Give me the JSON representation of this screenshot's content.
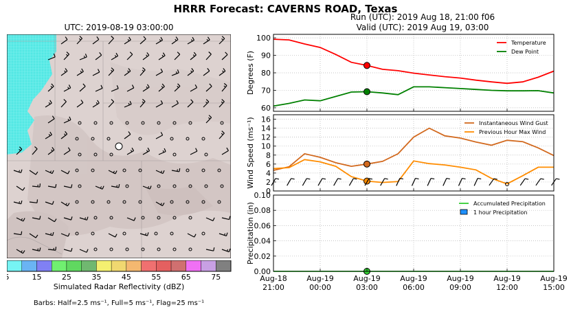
{
  "title": "HRRR Forecast: CAVERNS ROAD, Texas",
  "map": {
    "title": "UTC: 2019-08-19 03:00:00",
    "colorbar_label": "Simulated Radar Reflectivity (dBZ)",
    "colorbar_ticks": [
      "5",
      "15",
      "25",
      "35",
      "45",
      "55",
      "65",
      "75"
    ],
    "colorbar_colors": [
      "#76f4f4",
      "#6ab4f4",
      "#8080f4",
      "#70f070",
      "#60d860",
      "#70b870",
      "#f4f070",
      "#f0d870",
      "#f4b870",
      "#f07070",
      "#e46060",
      "#d07070",
      "#f070f4",
      "#c8a0e4",
      "#808080"
    ],
    "barbs_note": "Barbs: Half=2.5 ms⁻¹, Full=5 ms⁻¹, Flag=25 ms⁻¹"
  },
  "run": {
    "line1": "Run (UTC): 2019 Aug 18, 21:00 f06",
    "line2": "Valid (UTC): 2019 Aug 19, 03:00"
  },
  "colors": {
    "temperature": "#ff0000",
    "dew_point": "#008000",
    "gust": "#d2691e",
    "max_wind": "#ff8c00",
    "accum_precip": "#32cd32",
    "hourly_precip": "#1e90ff"
  },
  "chart_data": [
    {
      "type": "line",
      "ylabel": "Degrees (F)",
      "ylim": [
        58,
        102
      ],
      "yticks": [
        60,
        70,
        80,
        90,
        100
      ],
      "legend": "top-right",
      "x_hours": [
        0,
        1,
        2,
        3,
        4,
        5,
        6,
        7,
        8,
        9,
        10,
        11,
        12,
        13,
        14,
        15,
        16,
        17,
        18
      ],
      "series": [
        {
          "name": "Temperature",
          "values": [
            99.2,
            98.8,
            96.5,
            94.5,
            90.5,
            86.0,
            84.2,
            82.0,
            81.2,
            79.8,
            78.8,
            77.8,
            77.0,
            75.8,
            74.8,
            74.0,
            74.8,
            77.5,
            81.0
          ]
        },
        {
          "name": "Dew Point",
          "values": [
            61.0,
            62.5,
            64.5,
            64.0,
            66.5,
            69.0,
            69.2,
            68.5,
            67.5,
            72.0,
            72.0,
            71.5,
            71.0,
            70.5,
            70.0,
            69.7,
            69.7,
            69.8,
            68.5
          ]
        }
      ],
      "marker_hour": 6
    },
    {
      "type": "line",
      "ylabel": "Wind Speed (ms⁻¹)",
      "ylim": [
        0,
        17
      ],
      "yticks": [
        0,
        2,
        4,
        6,
        8,
        10,
        12,
        14,
        16
      ],
      "legend": "top-right",
      "x_hours": [
        0,
        1,
        2,
        3,
        4,
        5,
        6,
        7,
        8,
        9,
        10,
        11,
        12,
        13,
        14,
        15,
        16,
        17,
        18
      ],
      "series": [
        {
          "name": "Instantaneous Wind Gust",
          "values": [
            4.6,
            5.4,
            8.3,
            7.5,
            6.3,
            5.5,
            6.0,
            6.6,
            8.3,
            12.0,
            14.0,
            12.3,
            11.8,
            10.9,
            10.2,
            11.3,
            11.0,
            9.6,
            7.9
          ]
        },
        {
          "name": "Previous Hour Max Wind",
          "values": [
            5.0,
            5.2,
            7.0,
            6.5,
            5.5,
            3.2,
            2.2,
            1.9,
            2.1,
            6.7,
            6.1,
            5.8,
            5.3,
            4.7,
            2.8,
            1.6,
            3.4,
            5.3,
            5.3
          ]
        }
      ],
      "marker_hour": 6,
      "barbs": [
        {
          "hour": 0,
          "type": "barb"
        },
        {
          "hour": 1,
          "type": "barb"
        },
        {
          "hour": 2,
          "type": "barb"
        },
        {
          "hour": 3,
          "type": "barb"
        },
        {
          "hour": 4,
          "type": "barb"
        },
        {
          "hour": 5,
          "type": "barb"
        },
        {
          "hour": 6,
          "type": "barb"
        },
        {
          "hour": 7,
          "type": "barb"
        },
        {
          "hour": 8,
          "type": "barb"
        },
        {
          "hour": 9,
          "type": "barb"
        },
        {
          "hour": 10,
          "type": "barb"
        },
        {
          "hour": 11,
          "type": "barb"
        },
        {
          "hour": 12,
          "type": "barb"
        },
        {
          "hour": 13,
          "type": "barb"
        },
        {
          "hour": 14,
          "type": "barb"
        },
        {
          "hour": 15,
          "type": "calm"
        },
        {
          "hour": 16,
          "type": "barb"
        },
        {
          "hour": 17,
          "type": "barb"
        },
        {
          "hour": 18,
          "type": "barb"
        }
      ]
    },
    {
      "type": "bar",
      "ylabel": "Precipitation (in)",
      "ylim": [
        0,
        0.1
      ],
      "yticks": [
        "0.00",
        "0.02",
        "0.04",
        "0.06",
        "0.08",
        "0.10"
      ],
      "legend": "top-right",
      "x_hours": [
        0,
        1,
        2,
        3,
        4,
        5,
        6,
        7,
        8,
        9,
        10,
        11,
        12,
        13,
        14,
        15,
        16,
        17,
        18
      ],
      "series": [
        {
          "name": "Accumulated Precipitation",
          "values": [
            0,
            0,
            0,
            0,
            0,
            0,
            0,
            0,
            0,
            0,
            0,
            0,
            0,
            0,
            0,
            0,
            0,
            0,
            0
          ]
        },
        {
          "name": "1 hour Precipitation",
          "values": [
            0,
            0,
            0,
            0,
            0,
            0,
            0,
            0,
            0,
            0,
            0,
            0,
            0,
            0,
            0,
            0,
            0,
            0,
            0
          ]
        }
      ],
      "marker_hour": 6,
      "xtick_hours": [
        0,
        3,
        6,
        9,
        12,
        15,
        18
      ],
      "xtick_labels": [
        [
          "Aug-18",
          "21:00"
        ],
        [
          "Aug-19",
          "00:00"
        ],
        [
          "Aug-19",
          "03:00"
        ],
        [
          "Aug-19",
          "06:00"
        ],
        [
          "Aug-19",
          "09:00"
        ],
        [
          "Aug-19",
          "12:00"
        ],
        [
          "Aug-19",
          "15:00"
        ]
      ]
    }
  ]
}
